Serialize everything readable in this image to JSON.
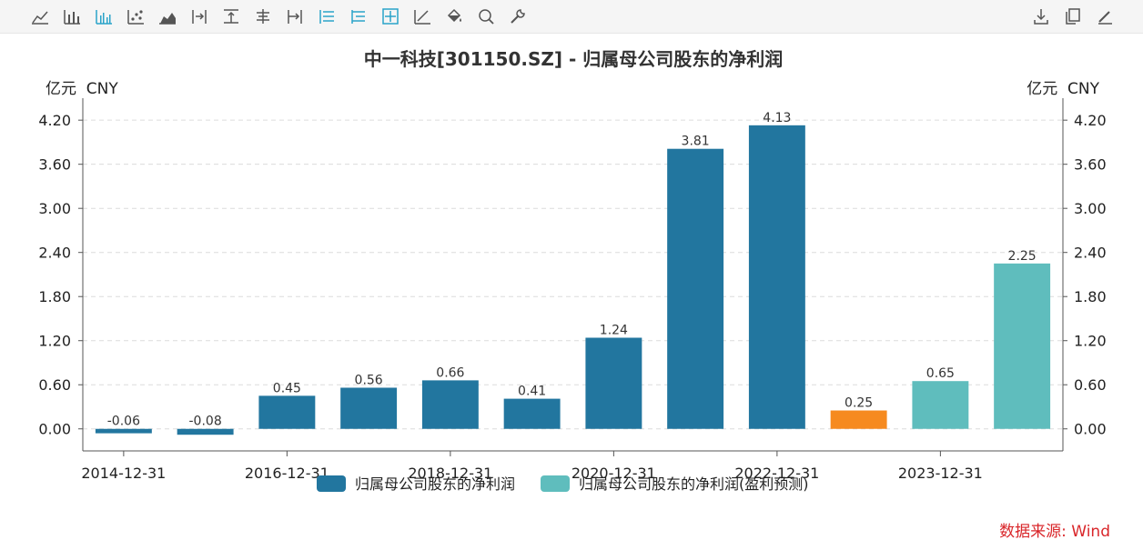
{
  "toolbar": {
    "left_icons": [
      "line-chart-icon",
      "bar-chart-icon",
      "grouped-bar-icon",
      "scatter-icon",
      "area-chart-icon",
      "align-right-icon",
      "align-top-icon",
      "align-center-icon",
      "align-end-icon",
      "list-icon",
      "tree-icon",
      "crosshair-icon",
      "trend-icon",
      "fill-bucket-icon",
      "zoom-icon",
      "wrench-icon"
    ],
    "right_icons": [
      "download-icon",
      "copy-icon",
      "edit-icon"
    ]
  },
  "source": "数据来源: Wind",
  "chart_data": {
    "type": "bar",
    "title": "中一科技[301150.SZ] - 归属母公司股东的净利润",
    "ylabel_left": "亿元  CNY",
    "ylabel_right": "亿元  CNY",
    "ylim": [
      -0.3,
      4.4
    ],
    "yticks": [
      "0.00",
      "0.60",
      "1.20",
      "1.80",
      "2.40",
      "3.00",
      "3.60",
      "4.20"
    ],
    "ytick_values": [
      0,
      0.6,
      1.2,
      1.8,
      2.4,
      3.0,
      3.6,
      4.2
    ],
    "xtick_labels": [
      "2014-12-31",
      "2016-12-31",
      "2018-12-31",
      "2020-12-31",
      "2022-12-31",
      "2023-12-31"
    ],
    "xtick_positions": [
      0,
      2,
      4,
      6,
      8,
      10
    ],
    "grid": true,
    "legend_position": "bottom-center",
    "colors": {
      "actual": "#22769f",
      "forecast": "#5fbdbd",
      "highlight": "#f68a1f",
      "grid": "#dcdcdc",
      "axis": "#555555"
    },
    "series": [
      {
        "name": "归属母公司股东的净利润",
        "color": "#22769f"
      },
      {
        "name": "归属母公司股东的净利润(盈利预测)",
        "color": "#5fbdbd"
      }
    ],
    "bars": [
      {
        "value": -0.06,
        "label": "-0.06",
        "kind": "actual"
      },
      {
        "value": -0.08,
        "label": "-0.08",
        "kind": "actual"
      },
      {
        "value": 0.45,
        "label": "0.45",
        "kind": "actual"
      },
      {
        "value": 0.56,
        "label": "0.56",
        "kind": "actual"
      },
      {
        "value": 0.66,
        "label": "0.66",
        "kind": "actual"
      },
      {
        "value": 0.41,
        "label": "0.41",
        "kind": "actual"
      },
      {
        "value": 1.24,
        "label": "1.24",
        "kind": "actual"
      },
      {
        "value": 3.81,
        "label": "3.81",
        "kind": "actual"
      },
      {
        "value": 4.13,
        "label": "4.13",
        "kind": "actual"
      },
      {
        "value": 0.25,
        "label": "0.25",
        "kind": "highlight"
      },
      {
        "value": 0.65,
        "label": "0.65",
        "kind": "forecast"
      },
      {
        "value": 2.25,
        "label": "2.25",
        "kind": "forecast"
      }
    ]
  }
}
